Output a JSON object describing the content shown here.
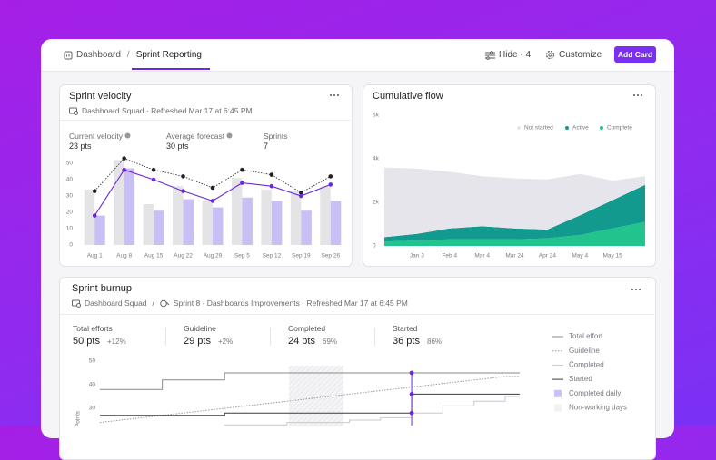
{
  "header": {
    "breadcrumb": [
      "Dashboard",
      "Sprint Reporting"
    ],
    "separator": "/",
    "hide": "Hide · 4",
    "customize": "Customize",
    "add_card": "Add Card"
  },
  "velocity_card": {
    "subtitle": "Dashboard Squad · Refreshed Mar 17 at 6:45 PM",
    "stats": [
      {
        "label": "Current velocity",
        "value": "23 pts"
      },
      {
        "label": "Average forecast",
        "value": "30 pts"
      },
      {
        "label": "Sprints",
        "value": "7"
      }
    ]
  },
  "burnup_card": {
    "team": "Dashboard Squad",
    "separator": "/",
    "subtitle": "Sprint 8 - Dashboards Improvements · Refreshed Mar 17 at 6:45 PM",
    "stats": [
      {
        "label": "Total efforts",
        "value": "50 pts",
        "change": "+12%"
      },
      {
        "label": "Guideline",
        "value": "29 pts",
        "change": "+2%"
      },
      {
        "label": "Completed",
        "value": "24 pts",
        "change": "69%"
      },
      {
        "label": "Started",
        "value": "36 pts",
        "change": "86%"
      }
    ]
  },
  "chart_data": [
    {
      "type": "bar",
      "title": "Sprint velocity",
      "categories": [
        "Aug 1",
        "Aug 8",
        "Aug 15",
        "Aug 22",
        "Aug 29",
        "Sep 5",
        "Sep 12",
        "Sep 19",
        "Sep 26"
      ],
      "series": [
        {
          "type": "bar",
          "color": "#e4e4e7",
          "values": [
            34,
            52,
            25,
            36,
            27,
            41,
            34,
            33,
            36
          ]
        },
        {
          "type": "bar",
          "color": "#c8c0f4",
          "values": [
            18,
            47,
            21,
            28,
            23,
            29,
            27,
            21,
            27
          ]
        },
        {
          "type": "line",
          "color": "#222222",
          "dash": true,
          "values": [
            33,
            53,
            46,
            42,
            35,
            46,
            43,
            32,
            42
          ]
        },
        {
          "type": "line",
          "color": "#6d28d9",
          "values": [
            18,
            46,
            40,
            33,
            27,
            38,
            36,
            30,
            37
          ]
        }
      ],
      "ylim": [
        0,
        50
      ],
      "yticks": [
        0,
        10,
        20,
        30,
        40,
        50
      ]
    },
    {
      "type": "area",
      "title": "Cumulative flow",
      "categories": [
        null,
        "Jan 3",
        "Feb 4",
        "Mar 4",
        "Mar 24",
        "Apr 24",
        "May 4",
        "May 15",
        null
      ],
      "series": [
        {
          "name": "Not started",
          "color": "#e6e5ec",
          "values": [
            3200,
            3000,
            2600,
            2300,
            2300,
            2300,
            1900,
            900,
            400
          ]
        },
        {
          "name": "Active",
          "color": "#129a8e",
          "values": [
            200,
            300,
            500,
            600,
            500,
            400,
            900,
            1300,
            1700
          ]
        },
        {
          "name": "Complete",
          "color": "#20c48c",
          "values": [
            200,
            250,
            300,
            300,
            300,
            350,
            500,
            800,
            1100
          ]
        }
      ],
      "ylim": [
        0,
        6000
      ],
      "yticks": [
        0,
        {
          "value": 2000,
          "label": "2k"
        },
        {
          "value": 4000,
          "label": "4k"
        },
        {
          "value": 6000,
          "label": "6k"
        }
      ]
    },
    {
      "type": "line",
      "title": "Sprint burnup",
      "y_label": "Points",
      "categories": [
        null,
        null,
        null,
        null,
        null,
        null,
        null,
        null,
        null,
        null,
        null,
        null,
        null,
        null
      ],
      "series": [
        {
          "name": "Total effort",
          "color": "#8a8a8f",
          "step": true,
          "values": [
            38,
            38,
            42,
            42,
            45,
            45,
            45,
            45,
            45,
            45,
            45,
            45,
            45,
            45
          ]
        },
        {
          "name": "Guideline",
          "color": "#9a9aa0",
          "dash": true,
          "values": [
            24,
            25.5,
            27,
            28.5,
            30,
            31.5,
            33,
            34.5,
            36,
            37.5,
            39,
            40.5,
            42,
            43.5
          ]
        },
        {
          "name": "Completed",
          "color": "#c9c9ce",
          "step": true,
          "values": [
            21,
            21,
            22,
            22,
            23,
            23,
            24,
            24,
            25,
            26,
            28,
            31,
            33,
            35
          ]
        },
        {
          "name": "Started",
          "color": "#3a3a40",
          "step": true,
          "values": [
            27,
            27,
            27,
            27,
            28,
            28,
            28,
            28,
            28,
            28,
            36,
            36,
            36,
            36
          ]
        }
      ],
      "legend_extra": [
        {
          "name": "Completed daily",
          "color": "#cdbff7"
        },
        {
          "name": "Non-working days",
          "color": "#f1f1f4"
        }
      ],
      "ylim": [
        20,
        50
      ],
      "yticks": [
        30,
        40,
        50
      ]
    }
  ]
}
